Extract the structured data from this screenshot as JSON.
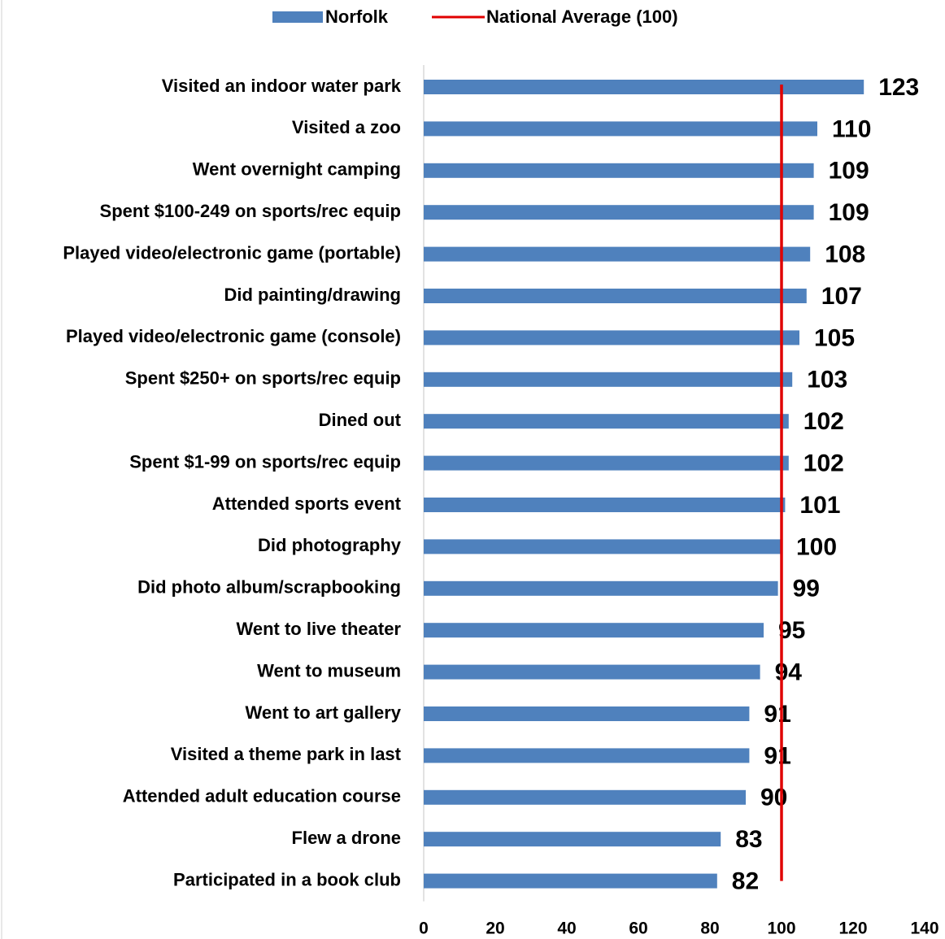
{
  "chart_data": {
    "type": "barh",
    "categories": [
      "Visited an indoor water park",
      "Visited a zoo",
      "Went overnight camping",
      "Spent $100-249 on sports/rec equip",
      "Played video/electronic game (portable)",
      "Did painting/drawing",
      "Played video/electronic game (console)",
      "Spent  $250+ on sports/rec equip",
      "Dined out",
      "Spent  $1-99 on sports/rec equip",
      "Attended sports event",
      "Did photography",
      "Did photo album/scrapbooking",
      "Went to live theater",
      "Went to museum",
      "Went to art gallery",
      "Visited a theme park in last",
      "Attended adult education course",
      "Flew a drone",
      "Participated in a book club"
    ],
    "series": [
      {
        "name": "Norfolk",
        "color": "#4f81bd",
        "values": [
          123,
          110,
          109,
          109,
          108,
          107,
          105,
          103,
          102,
          102,
          101,
          100,
          99,
          95,
          94,
          91,
          91,
          90,
          83,
          82
        ]
      }
    ],
    "reference_line": {
      "name": "National Average (100)",
      "value": 100,
      "color": "#e00000"
    },
    "xlim": [
      0,
      140
    ],
    "xticks": [
      0,
      20,
      40,
      60,
      80,
      100,
      120,
      140
    ]
  }
}
